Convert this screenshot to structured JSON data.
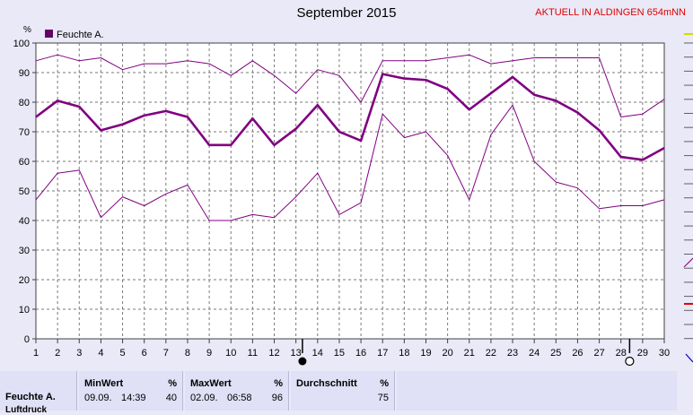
{
  "header": {
    "title": "September 2015",
    "location_note": "AKTUELL IN ALDINGEN 654mNN"
  },
  "colors": {
    "series": "#800080",
    "legend_swatch": "#660066",
    "grid": "#7a7a7a",
    "plot_bg": "#ffffff",
    "page_bg": "#e9e9f7",
    "accent_red": "#e00000"
  },
  "chart_data": {
    "type": "line",
    "ylabel": "%",
    "legend": [
      "Feuchte A."
    ],
    "ylim": [
      0,
      100
    ],
    "yticks": [
      0,
      10,
      20,
      30,
      40,
      50,
      60,
      70,
      80,
      90,
      100
    ],
    "xlim": [
      1,
      30
    ],
    "x": [
      1,
      2,
      3,
      4,
      5,
      6,
      7,
      8,
      9,
      10,
      11,
      12,
      13,
      14,
      15,
      16,
      17,
      18,
      19,
      20,
      21,
      22,
      23,
      24,
      25,
      26,
      27,
      28,
      29,
      30
    ],
    "grid": true,
    "markers": {
      "filled_circle_day": 13.3,
      "open_circle_day": 28.4
    },
    "series": [
      {
        "name": "Feuchte A.",
        "role": "mean",
        "values": [
          75,
          80.5,
          78.5,
          70.5,
          72.5,
          75.5,
          77,
          75,
          65.5,
          65.5,
          74.5,
          65.5,
          71,
          79,
          70,
          67,
          89.5,
          88,
          87.5,
          84.5,
          77.5,
          83,
          88.5,
          82.5,
          80.5,
          76.5,
          70.5,
          61.5,
          60.5,
          64.5
        ]
      },
      {
        "role": "max",
        "values": [
          94,
          96,
          94,
          95,
          91,
          93,
          93,
          94,
          93,
          89,
          94,
          89,
          83,
          91,
          89,
          80,
          94,
          94,
          94,
          95,
          96,
          93,
          94,
          95,
          95,
          95,
          95,
          75,
          76,
          81
        ]
      },
      {
        "role": "min",
        "values": [
          47,
          56,
          57,
          41,
          48,
          45,
          49,
          52,
          40,
          40,
          42,
          41,
          48,
          56,
          42,
          46,
          76,
          68,
          70,
          62,
          47,
          69,
          79,
          60,
          53,
          51,
          44,
          45,
          45,
          47
        ]
      }
    ]
  },
  "stats": {
    "row_label": "Feuchte A.",
    "row_label_2": "Luftdruck",
    "min": {
      "label": "MinWert",
      "unit": "%",
      "date": "09.09.",
      "time": "14:39",
      "value": "40"
    },
    "max": {
      "label": "MaxWert",
      "unit": "%",
      "date": "02.09.",
      "time": "06:58",
      "value": "96"
    },
    "avg": {
      "label": "Durchschnitt",
      "unit": "%",
      "value": "75"
    }
  }
}
